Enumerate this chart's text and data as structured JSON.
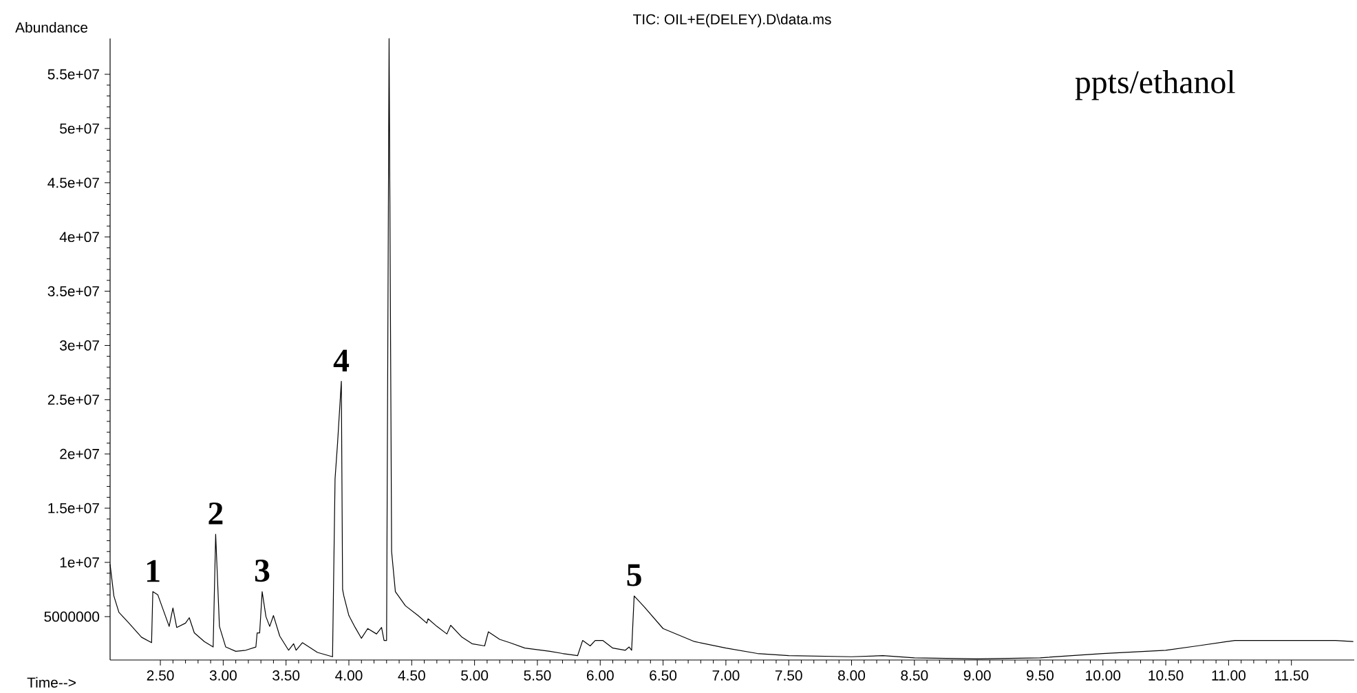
{
  "chart_data": {
    "type": "line",
    "title": "TIC: OIL+E(DELEY).D\\data.ms",
    "xlabel": "Time-->",
    "ylabel": "Abundance",
    "color": "#000000",
    "x": [
      2.1,
      2.13,
      2.17,
      2.25,
      2.35,
      2.43,
      2.44,
      2.48,
      2.57,
      2.6,
      2.63,
      2.7,
      2.73,
      2.77,
      2.85,
      2.92,
      2.94,
      2.97,
      3.02,
      3.1,
      3.18,
      3.26,
      3.27,
      3.29,
      3.31,
      3.34,
      3.37,
      3.4,
      3.45,
      3.52,
      3.56,
      3.58,
      3.63,
      3.75,
      3.87,
      3.89,
      3.91,
      3.94,
      3.95,
      3.96,
      4.0,
      4.05,
      4.1,
      4.15,
      4.22,
      4.26,
      4.28,
      4.3,
      4.32,
      4.34,
      4.37,
      4.45,
      4.55,
      4.62,
      4.63,
      4.7,
      4.78,
      4.81,
      4.9,
      4.98,
      5.08,
      5.11,
      5.2,
      5.28,
      5.4,
      5.6,
      5.7,
      5.82,
      5.86,
      5.92,
      5.96,
      6.02,
      6.1,
      6.2,
      6.23,
      6.25,
      6.27,
      6.35,
      6.5,
      6.75,
      7.0,
      7.25,
      7.5,
      8.0,
      8.25,
      8.5,
      9.0,
      9.5,
      10.0,
      10.5,
      10.75,
      11.05,
      11.5,
      11.85,
      11.99
    ],
    "values": [
      9800000,
      6900000,
      5400000,
      4400000,
      3100000,
      2600000,
      7300000,
      7000000,
      4100000,
      5800000,
      4000000,
      4400000,
      4900000,
      3500000,
      2700000,
      2200000,
      12600000,
      4100000,
      2200000,
      1800000,
      1900000,
      2200000,
      3500000,
      3500000,
      7300000,
      5000000,
      4100000,
      5100000,
      3200000,
      1900000,
      2500000,
      1900000,
      2600000,
      1700000,
      1300000,
      17700000,
      21000000,
      26700000,
      7500000,
      6900000,
      5100000,
      4000000,
      3000000,
      3900000,
      3400000,
      4000000,
      2800000,
      2800000,
      58300000,
      11000000,
      7300000,
      6000000,
      5100000,
      4400000,
      4800000,
      4100000,
      3400000,
      4200000,
      3100000,
      2500000,
      2300000,
      3600000,
      2900000,
      2600000,
      2100000,
      1800000,
      1600000,
      1400000,
      2800000,
      2300000,
      2800000,
      2800000,
      2100000,
      1900000,
      2200000,
      1900000,
      6900000,
      5900000,
      3900000,
      2700000,
      2100000,
      1600000,
      1400000,
      1300000,
      1400000,
      1200000,
      1100000,
      1200000,
      1600000,
      1900000,
      2300000,
      2800000,
      2800000,
      2800000,
      2700000
    ],
    "xlim": [
      2.1,
      12.0
    ],
    "ylim": [
      1000000,
      58300000
    ],
    "xticks": [
      {
        "value": 2.5,
        "label": "2.50"
      },
      {
        "value": 3.0,
        "label": "3.00"
      },
      {
        "value": 3.5,
        "label": "3.50"
      },
      {
        "value": 4.0,
        "label": "4.00"
      },
      {
        "value": 4.5,
        "label": "4.50"
      },
      {
        "value": 5.0,
        "label": "5.00"
      },
      {
        "value": 5.5,
        "label": "5.50"
      },
      {
        "value": 6.0,
        "label": "6.00"
      },
      {
        "value": 6.5,
        "label": "6.50"
      },
      {
        "value": 7.0,
        "label": "7.00"
      },
      {
        "value": 7.5,
        "label": "7.50"
      },
      {
        "value": 8.0,
        "label": "8.00"
      },
      {
        "value": 8.5,
        "label": "8.50"
      },
      {
        "value": 9.0,
        "label": "9.00"
      },
      {
        "value": 9.5,
        "label": "9.50"
      },
      {
        "value": 10.0,
        "label": "10.00"
      },
      {
        "value": 10.5,
        "label": "10.50"
      },
      {
        "value": 11.0,
        "label": "11.00"
      },
      {
        "value": 11.5,
        "label": "11.50"
      }
    ],
    "yticks": [
      5000000,
      {
        "value": 10000000,
        "label": "1e+07"
      },
      {
        "value": 15000000,
        "label": "1.5e+07"
      },
      {
        "value": 20000000,
        "label": "2e+07"
      },
      {
        "value": 25000000,
        "label": "2.5e+07"
      },
      {
        "value": 30000000,
        "label": "3e+07"
      },
      {
        "value": 35000000,
        "label": "3.5e+07"
      },
      {
        "value": 40000000,
        "label": "4e+07"
      },
      {
        "value": 45000000,
        "label": "4.5e+07"
      },
      {
        "value": 50000000,
        "label": "5e+07"
      },
      {
        "value": 55000000,
        "label": "5.5e+07"
      }
    ],
    "annotations": [
      "ppts/ethanol",
      {
        "text": "1",
        "x": 2.44,
        "y": 7300000
      },
      {
        "text": "2",
        "x": 2.94,
        "y": 12600000
      },
      {
        "text": "3",
        "x": 3.31,
        "y": 7300000
      },
      {
        "text": "4",
        "x": 3.94,
        "y": 26700000
      },
      {
        "text": "5",
        "x": 6.27,
        "y": 6900000
      }
    ]
  }
}
